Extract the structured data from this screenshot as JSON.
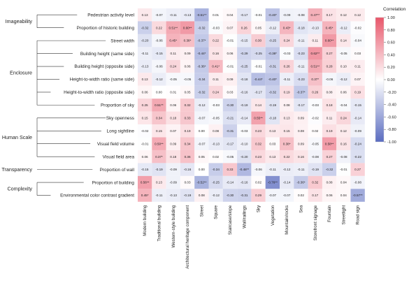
{
  "chart_data": {
    "type": "heatmap",
    "colorbar": {
      "title": "Correlation",
      "ticks": [
        "1.00",
        "0.80",
        "0.60",
        "0.40",
        "0.20",
        "0.00",
        "-0.20",
        "-0.40",
        "-0.60",
        "-0.80",
        "-1.00"
      ],
      "range": [
        -1,
        1
      ],
      "colors": {
        "negative": "#5a6cc0",
        "zero": "#ffffff",
        "positive": "#e8566a"
      }
    },
    "groups": [
      {
        "name": "Imageability",
        "rows": [
          0,
          1
        ]
      },
      {
        "name": "Enclosure",
        "rows": [
          2,
          3,
          4,
          5,
          6,
          7
        ]
      },
      {
        "name": "Human Scale",
        "rows": [
          8,
          9,
          10,
          11
        ]
      },
      {
        "name": "Transparency",
        "rows": [
          12
        ]
      },
      {
        "name": "Complexity",
        "rows": [
          13,
          14
        ]
      }
    ],
    "rows": [
      "Pedestrian activity level",
      "Proportion of historic building",
      "Street width",
      "Building height (same side)",
      "Building height (opposite side)",
      "Height-to-width ratio (same side)",
      "Height-to-width ratio (opposite side)",
      "Proportion of sky",
      "Sky openness",
      "Long sightline",
      "Visual field volume",
      "Visual field area",
      "Proportion of wall",
      "Proportion of building",
      "Environmental color contrast gradient"
    ],
    "columns": [
      "Modern building",
      "Traditional building",
      "Western-style building",
      "Architectural heritage component",
      "Street",
      "Square",
      "Staircase/slope",
      "Wall/railings",
      "Sky",
      "Vegetation",
      "Mountain/rocks",
      "Sea",
      "Storefront signage",
      "Fountain",
      "Streetlight",
      "Road sign"
    ],
    "values": [
      [
        "0.13",
        "-0.07",
        "-0.11",
        "-0.13",
        "-0.51**",
        "0.01",
        "0.04",
        "-0.17",
        "-0.01",
        "-0.40*",
        "-0.09",
        "-0.08",
        "0.47**",
        "0.17",
        "0.12",
        "0.12"
      ],
      [
        "-0.32",
        "0.22",
        "0.51**",
        "0.60**",
        "-0.32",
        "-0.03",
        "0.07",
        "0.26",
        "0.05",
        "-0.12",
        "0.43*",
        "-0.18",
        "-0.13",
        "0.45*",
        "-0.12",
        "-0.02"
      ],
      [
        "-0.20",
        "-0.06",
        "0.45*",
        "0.38*",
        "-0.37*",
        "0.22",
        "-0.01",
        "-0.15",
        "0.30",
        "-0.25",
        "0.24",
        "-0.11",
        "0.11",
        "0.60**",
        "0.14",
        "-0.04"
      ],
      [
        "-0.11",
        "-0.15",
        "0.11",
        "0.09",
        "-0.44*",
        "0.16",
        "0.06",
        "-0.29",
        "-0.25",
        "-0.38*",
        "-0.03",
        "-0.23",
        "0.62**",
        "0.27",
        "-0.05",
        "0.03"
      ],
      [
        "-0.13",
        "-0.06",
        "0.24",
        "0.06",
        "-0.36*",
        "0.41*",
        "-0.01",
        "-0.25",
        "-0.01",
        "-0.31",
        "0.26",
        "-0.11",
        "0.51**",
        "0.28",
        "0.10",
        "0.11"
      ],
      [
        "0.13",
        "-0.12",
        "-0.05",
        "-0.05",
        "-0.34",
        "0.11",
        "0.09",
        "-0.18",
        "-0.44*",
        "-0.40*",
        "-0.11",
        "-0.23",
        "0.37*",
        "-0.06",
        "-0.12",
        "0.07"
      ],
      [
        "0.06",
        "0.00",
        "0.01",
        "0.05",
        "-0.32",
        "0.24",
        "0.03",
        "-0.16",
        "-0.17",
        "-0.32",
        "0.19",
        "-0.37*",
        "0.26",
        "0.08",
        "0.06",
        "0.19"
      ],
      [
        "0.25",
        "0.51**",
        "0.06",
        "0.32",
        "-0.12",
        "-0.03",
        "-0.30",
        "-0.19",
        "0.14",
        "-0.19",
        "0.08",
        "-0.17",
        "-0.03",
        "0.18",
        "-0.04",
        "-0.15"
      ],
      [
        "0.15",
        "0.34",
        "0.18",
        "0.33",
        "-0.07",
        "-0.05",
        "-0.21",
        "-0.14",
        "0.55**",
        "-0.18",
        "0.13",
        "0.09",
        "-0.02",
        "0.11",
        "0.24",
        "-0.14"
      ],
      [
        "-0.02",
        "0.15",
        "0.07",
        "0.19",
        "0.00",
        "0.08",
        "-0.31",
        "-0.03",
        "0.23",
        "0.13",
        "0.15",
        "0.08",
        "0.02",
        "0.19",
        "0.12",
        "-0.09"
      ],
      [
        "-0.01",
        "0.50**",
        "0.09",
        "0.34",
        "-0.07",
        "-0.13",
        "-0.17",
        "-0.10",
        "0.32",
        "0.03",
        "0.38*",
        "0.09",
        "-0.05",
        "0.58**",
        "0.16",
        "-0.24"
      ],
      [
        "0.06",
        "0.37*",
        "0.18",
        "0.36",
        "0.05",
        "0.02",
        "-0.05",
        "-0.20",
        "0.23",
        "0.13",
        "0.22",
        "0.16",
        "-0.08",
        "0.27",
        "-0.08",
        "-0.22"
      ],
      [
        "-0.15",
        "-0.19",
        "-0.09",
        "-0.16",
        "0.00",
        "-0.34",
        "0.33",
        "-0.48**",
        "-0.06",
        "-0.11",
        "-0.12",
        "-0.11",
        "-0.19",
        "-0.32",
        "-0.01",
        "0.27"
      ],
      [
        "0.56**",
        "0.13",
        "-0.09",
        "0.03",
        "-0.52**",
        "-0.25",
        "-0.14",
        "-0.16",
        "0.02",
        "-0.76**",
        "-0.14",
        "-0.36*",
        "0.32",
        "0.08",
        "0.04",
        "-0.08"
      ],
      [
        "0.45*",
        "-0.11",
        "-0.13",
        "-0.19",
        "0.08",
        "-0.12",
        "-0.30",
        "-0.31",
        "0.29",
        "-0.07",
        "-0.07",
        "0.02",
        "0.17",
        "0.06",
        "0.04",
        "-0.57**"
      ]
    ]
  }
}
